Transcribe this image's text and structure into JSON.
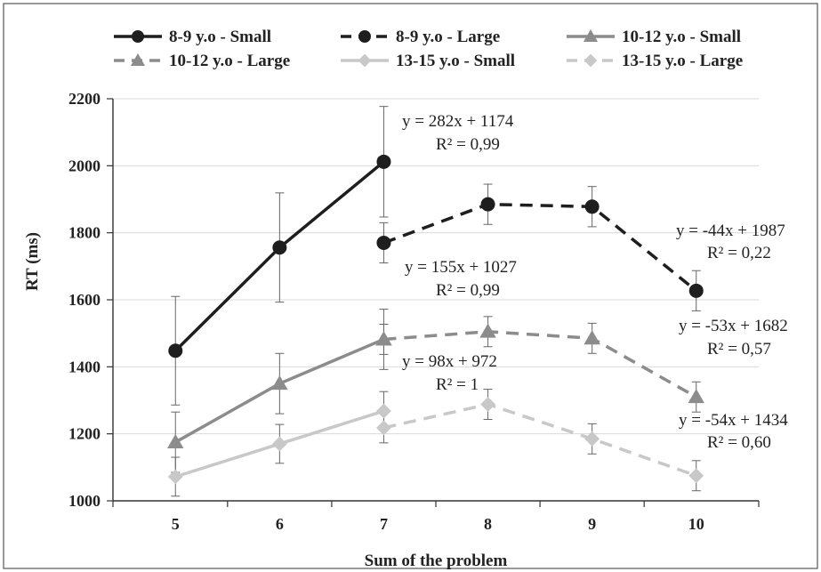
{
  "chart_data": {
    "type": "line",
    "xlabel": "Sum of the problem",
    "ylabel": "RT (ms)",
    "x_ticks": [
      5,
      6,
      7,
      8,
      9,
      10
    ],
    "y_ticks": [
      1000,
      1200,
      1400,
      1600,
      1800,
      2000,
      2200
    ],
    "xlim": [
      4.4,
      10.6
    ],
    "ylim": [
      1000,
      2200
    ],
    "grid": "horizontal",
    "legend_position": "top",
    "series": [
      {
        "name": "8-9 y.o - Small",
        "color": "#1e1e1e",
        "dash": "solid",
        "marker": "circle",
        "x": [
          5,
          6,
          7
        ],
        "y": [
          1448,
          1756,
          2012
        ],
        "err": [
          162,
          163,
          165
        ]
      },
      {
        "name": "8-9 y.o - Large",
        "color": "#1e1e1e",
        "dash": "dashed",
        "marker": "circle",
        "x": [
          7,
          8,
          9,
          10
        ],
        "y": [
          1770,
          1885,
          1878,
          1627
        ],
        "err": [
          60,
          60,
          60,
          60
        ]
      },
      {
        "name": "10-12 y.o - Small",
        "color": "#8c8c8c",
        "dash": "solid",
        "marker": "triangle",
        "x": [
          5,
          6,
          7
        ],
        "y": [
          1175,
          1350,
          1482
        ],
        "err": [
          90,
          90,
          90
        ]
      },
      {
        "name": "10-12 y.o - Large",
        "color": "#8c8c8c",
        "dash": "dashed",
        "marker": "triangle",
        "x": [
          7,
          8,
          9,
          10
        ],
        "y": [
          1482,
          1505,
          1485,
          1310
        ],
        "err": [
          45,
          45,
          45,
          45
        ]
      },
      {
        "name": "13-15 y.o - Small",
        "color": "#c8c8c8",
        "dash": "solid",
        "marker": "diamond",
        "x": [
          5,
          6,
          7
        ],
        "y": [
          1072,
          1170,
          1268
        ],
        "err": [
          58,
          58,
          58
        ]
      },
      {
        "name": "13-15 y.o - Large",
        "color": "#c8c8c8",
        "dash": "dashed",
        "marker": "diamond",
        "x": [
          7,
          8,
          9,
          10
        ],
        "y": [
          1218,
          1288,
          1185,
          1075
        ],
        "err": [
          45,
          45,
          45,
          45
        ]
      }
    ],
    "annotations": [
      {
        "eq": "y = 282x + 1174",
        "r2": "R² = 0,99"
      },
      {
        "eq": "y = -44x + 1987",
        "r2": "R² = 0,22"
      },
      {
        "eq": "y = 155x + 1027",
        "r2": "R² = 0,99"
      },
      {
        "eq": "y = -53x + 1682",
        "r2": "R² = 0,57"
      },
      {
        "eq": "y = 98x + 972",
        "r2": "R² = 1"
      },
      {
        "eq": "y = -54x + 1434",
        "r2": "R² = 0,60"
      }
    ]
  }
}
